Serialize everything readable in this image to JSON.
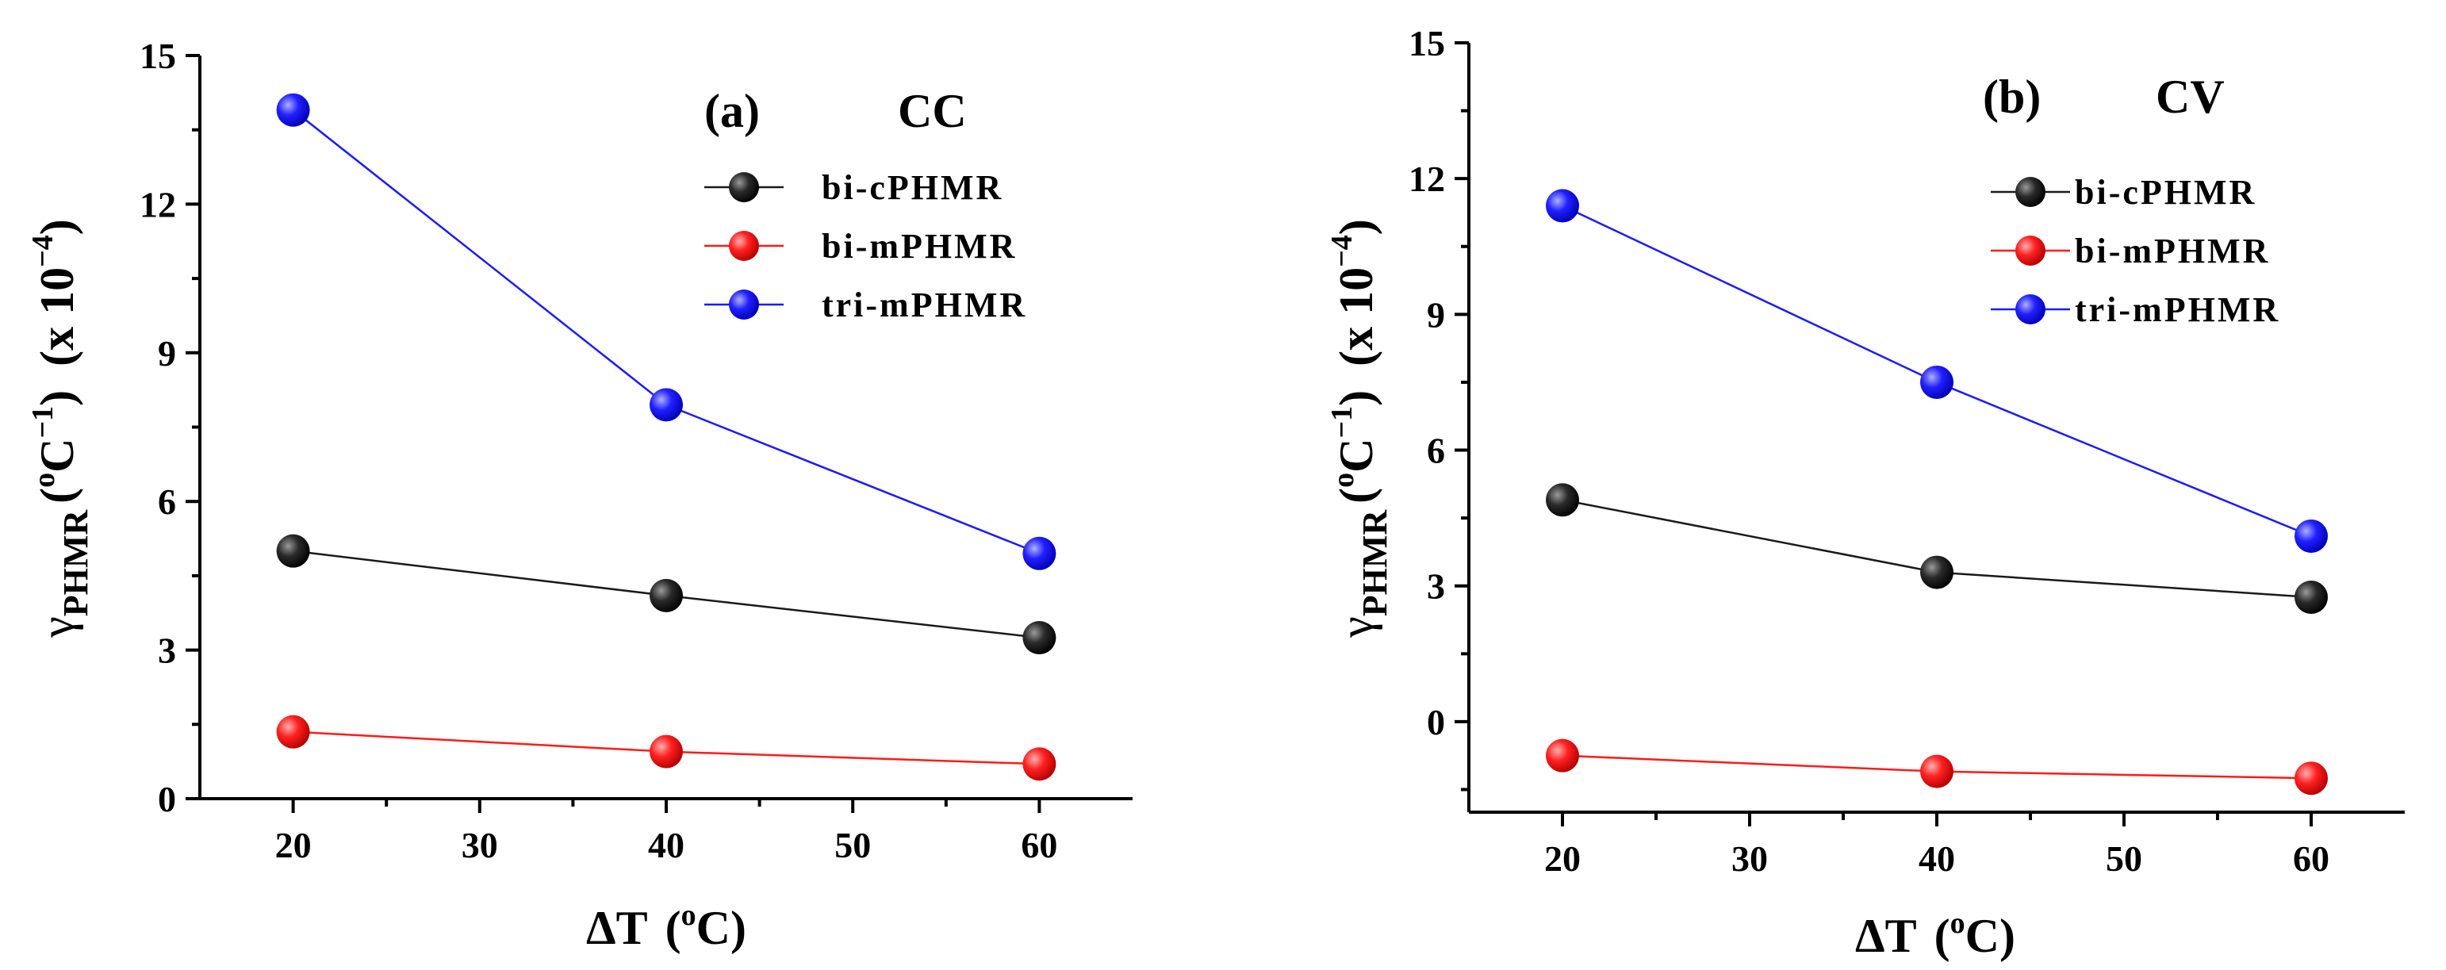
{
  "chart_data": [
    {
      "type": "line",
      "panel_label": "(a)",
      "title": "CC",
      "xlabel": "ΔT (°C)",
      "ylabel": "γPHMR (°C−1) (x 10−4)",
      "ylabel_parts": {
        "symbol": "γ",
        "subscript": "PHMR",
        "paren_open": "(",
        "unit_sup": "o",
        "unit": "C",
        "unit_exp": "−1",
        "paren_close": ")",
        "scale": "(x 10",
        "scale_exp": "−4",
        "scale_close": ")"
      },
      "xlabel_parts": {
        "symbol": "ΔT",
        "paren_open": "(",
        "sup": "o",
        "unit": "C",
        "paren_close": ")"
      },
      "xlim": [
        15,
        65
      ],
      "ylim": [
        0,
        15
      ],
      "xticks": [
        20,
        30,
        40,
        50,
        60
      ],
      "xtick_labels": [
        "20",
        "30",
        "40",
        "50",
        "60"
      ],
      "yticks": [
        0,
        3,
        6,
        9,
        12,
        15
      ],
      "ytick_labels": [
        "0",
        "3",
        "6",
        "9",
        "12",
        "15"
      ],
      "legend_position": "top-right",
      "x": [
        20,
        40,
        60
      ],
      "series": [
        {
          "name": "bi-cPHMR",
          "color": "#1a1a1a",
          "values": [
            5.0,
            4.1,
            3.25
          ]
        },
        {
          "name": "bi-mPHMR",
          "color": "#ff1a1a",
          "values": [
            1.35,
            0.95,
            0.7
          ]
        },
        {
          "name": "tri-mPHMR",
          "color": "#1a1aff",
          "values": [
            13.9,
            7.95,
            4.95
          ]
        }
      ]
    },
    {
      "type": "line",
      "panel_label": "(b)",
      "title": "CV",
      "xlabel": "ΔT (°C)",
      "ylabel": "γPHMR (°C−1) (x 10−4)",
      "ylabel_parts": {
        "symbol": "γ",
        "subscript": "PHMR",
        "paren_open": "(",
        "unit_sup": "o",
        "unit": "C",
        "unit_exp": "−1",
        "paren_close": ")",
        "scale": "(x 10",
        "scale_exp": "−4",
        "scale_close": ")"
      },
      "xlabel_parts": {
        "symbol": "ΔT",
        "paren_open": "(",
        "sup": "o",
        "unit": "C",
        "paren_close": ")"
      },
      "xlim": [
        15,
        65
      ],
      "ylim": [
        -2,
        15
      ],
      "xticks": [
        20,
        30,
        40,
        50,
        60
      ],
      "xtick_labels": [
        "20",
        "30",
        "40",
        "50",
        "60"
      ],
      "yticks": [
        0,
        3,
        6,
        9,
        12,
        15
      ],
      "ytick_labels": [
        "0",
        "3",
        "6",
        "9",
        "12",
        "15"
      ],
      "legend_position": "top-right",
      "x": [
        20,
        40,
        60
      ],
      "series": [
        {
          "name": "bi-cPHMR",
          "color": "#1a1a1a",
          "values": [
            4.9,
            3.3,
            2.75
          ]
        },
        {
          "name": "bi-mPHMR",
          "color": "#ff1a1a",
          "values": [
            -0.75,
            -1.1,
            -1.25
          ]
        },
        {
          "name": "tri-mPHMR",
          "color": "#1a1aff",
          "values": [
            11.4,
            7.5,
            4.1
          ]
        }
      ]
    }
  ]
}
